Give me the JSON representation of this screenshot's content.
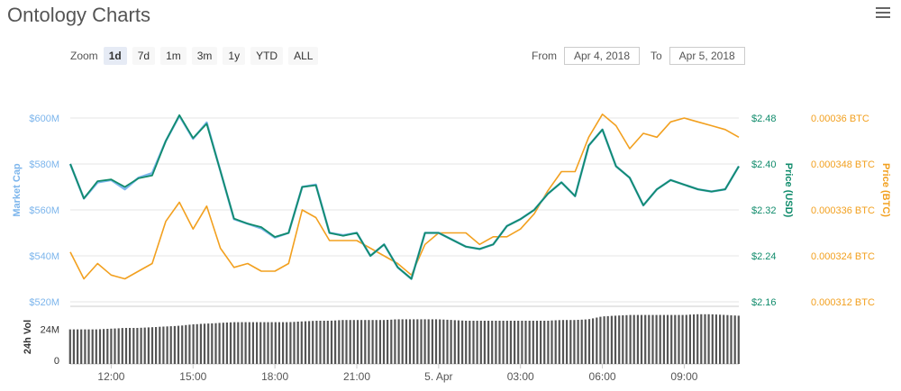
{
  "title": "Ontology Charts",
  "menu_icon": "hamburger-menu-icon",
  "zoom": {
    "label": "Zoom",
    "buttons": [
      "1d",
      "7d",
      "1m",
      "3m",
      "1y",
      "YTD",
      "ALL"
    ],
    "active": "1d"
  },
  "range": {
    "from_label": "From",
    "from_value": "Apr 4, 2018",
    "to_label": "To",
    "to_value": "Apr 5, 2018"
  },
  "colors": {
    "market_cap": "#7cb5ec",
    "price_usd": "#118c6c",
    "price_btc": "#f2a01f",
    "volume": "#555555",
    "grid": "#e6e6e6"
  },
  "chart_data": {
    "type": "line",
    "x_ticks": [
      "12:00",
      "15:00",
      "18:00",
      "21:00",
      "5. Apr",
      "03:00",
      "06:00",
      "09:00"
    ],
    "axes": {
      "market_cap": {
        "label": "Market Cap",
        "ticks": [
          "$520M",
          "$540M",
          "$560M",
          "$580M",
          "$600M"
        ],
        "range": [
          520,
          600
        ]
      },
      "price_usd": {
        "label": "Price (USD)",
        "ticks": [
          "$2.16",
          "$2.24",
          "$2.32",
          "$2.40",
          "$2.48"
        ],
        "range": [
          2.16,
          2.48
        ]
      },
      "price_btc": {
        "label": "Price (BTC)",
        "ticks": [
          "0.000312 BTC",
          "0.000324 BTC",
          "0.000336 BTC",
          "0.000348 BTC",
          "0.00036 BTC"
        ],
        "range": [
          0.000312,
          0.00036
        ]
      },
      "volume": {
        "label": "24h Vol",
        "ticks": [
          "0",
          "24M"
        ],
        "range": [
          0,
          40
        ]
      }
    },
    "x_hours": [
      10.5,
      11.0,
      11.5,
      12.0,
      12.5,
      13.0,
      13.5,
      14.0,
      14.5,
      15.0,
      15.5,
      16.0,
      16.5,
      17.0,
      17.5,
      18.0,
      18.5,
      19.0,
      19.5,
      20.0,
      20.5,
      21.0,
      21.5,
      22.0,
      22.5,
      23.0,
      23.5,
      24.0,
      24.5,
      25.0,
      25.5,
      26.0,
      26.5,
      27.0,
      27.5,
      28.0,
      28.5,
      29.0,
      29.5,
      30.0,
      30.5,
      31.0,
      31.5,
      32.0,
      32.5,
      33.0,
      33.5,
      34.0,
      34.5,
      35.0
    ],
    "series": [
      {
        "name": "Market Cap",
        "values": [
          580,
          565,
          572,
          573,
          569,
          574,
          576,
          590,
          601,
          591,
          598,
          577,
          556,
          554,
          552,
          548,
          550,
          570,
          571,
          550,
          549,
          550,
          540,
          545,
          535,
          530,
          550,
          550,
          547,
          544,
          543,
          545,
          553,
          556,
          560,
          567,
          572,
          566,
          588,
          595,
          579,
          574,
          562,
          569,
          573,
          571,
          569,
          568,
          569,
          579
        ]
      },
      {
        "name": "Price (USD)",
        "values": [
          2.4,
          2.34,
          2.37,
          2.373,
          2.36,
          2.375,
          2.38,
          2.44,
          2.485,
          2.445,
          2.47,
          2.388,
          2.305,
          2.296,
          2.29,
          2.273,
          2.28,
          2.36,
          2.363,
          2.28,
          2.275,
          2.28,
          2.24,
          2.26,
          2.22,
          2.2,
          2.28,
          2.28,
          2.268,
          2.256,
          2.252,
          2.26,
          2.292,
          2.304,
          2.32,
          2.348,
          2.368,
          2.344,
          2.432,
          2.46,
          2.396,
          2.376,
          2.328,
          2.356,
          2.372,
          2.364,
          2.356,
          2.352,
          2.356,
          2.396
        ]
      },
      {
        "name": "Price (BTC)",
        "values": [
          0.000325,
          0.000318,
          0.000322,
          0.000319,
          0.000318,
          0.00032,
          0.000322,
          0.000333,
          0.000338,
          0.000331,
          0.000337,
          0.000326,
          0.000321,
          0.000322,
          0.00032,
          0.00032,
          0.000322,
          0.000336,
          0.000334,
          0.000328,
          0.000328,
          0.000328,
          0.000326,
          0.000324,
          0.000322,
          0.000319,
          0.000327,
          0.00033,
          0.00033,
          0.00033,
          0.000327,
          0.000329,
          0.000329,
          0.000331,
          0.000335,
          0.000341,
          0.000346,
          0.000346,
          0.000355,
          0.000361,
          0.000358,
          0.000352,
          0.000356,
          0.000355,
          0.000359,
          0.00036,
          0.000359,
          0.000358,
          0.000357,
          0.000355
        ]
      },
      {
        "name": "24h Vol",
        "values": [
          24,
          24,
          24,
          24.5,
          25,
          25,
          25.5,
          26,
          26.5,
          27.5,
          28,
          28.5,
          29,
          29,
          29,
          29,
          29,
          29.5,
          30,
          30,
          30.5,
          30.5,
          30.5,
          30.5,
          31,
          31,
          31,
          31,
          30.5,
          30,
          30,
          30,
          30,
          30,
          30,
          30,
          30.5,
          30.5,
          31,
          33,
          33.5,
          34,
          34,
          34,
          34,
          34,
          34.5,
          34.5,
          34,
          33.5
        ]
      }
    ]
  }
}
